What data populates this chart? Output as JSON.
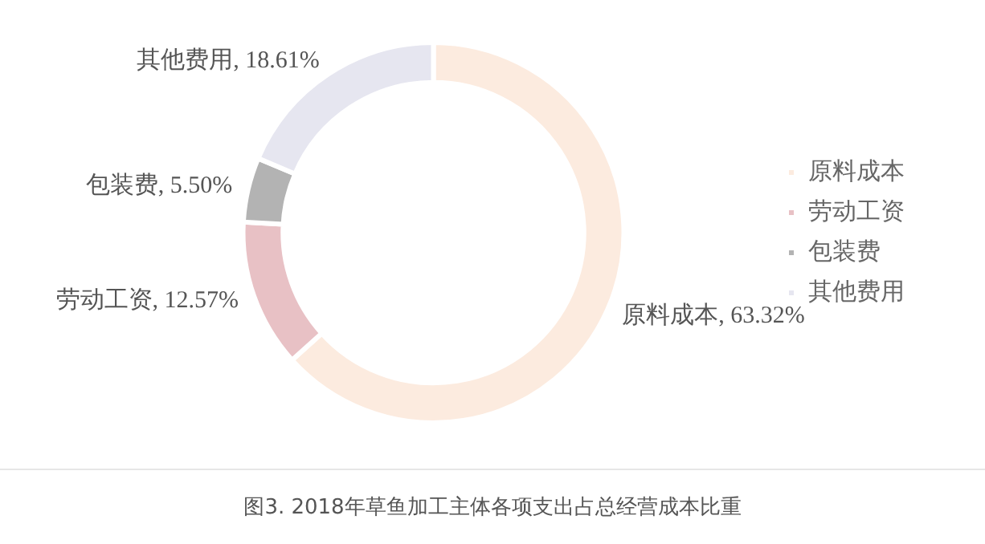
{
  "chart_data": {
    "type": "donut",
    "title": "图3. 2018年草鱼加工主体各项支出占总经营成本比重",
    "categories": [
      "原料成本",
      "劳动工资",
      "包装费",
      "其他费用"
    ],
    "values": [
      63.32,
      12.57,
      5.5,
      18.61
    ],
    "value_labels": [
      "原料成本, 63.32%",
      "劳动工资, 12.57%",
      "包装费, 5.50%",
      "其他费用, 18.61%"
    ],
    "colors": [
      "#fcebdf",
      "#e8c1c5",
      "#b3b3b3",
      "#e6e6f0"
    ],
    "legend": "right"
  }
}
